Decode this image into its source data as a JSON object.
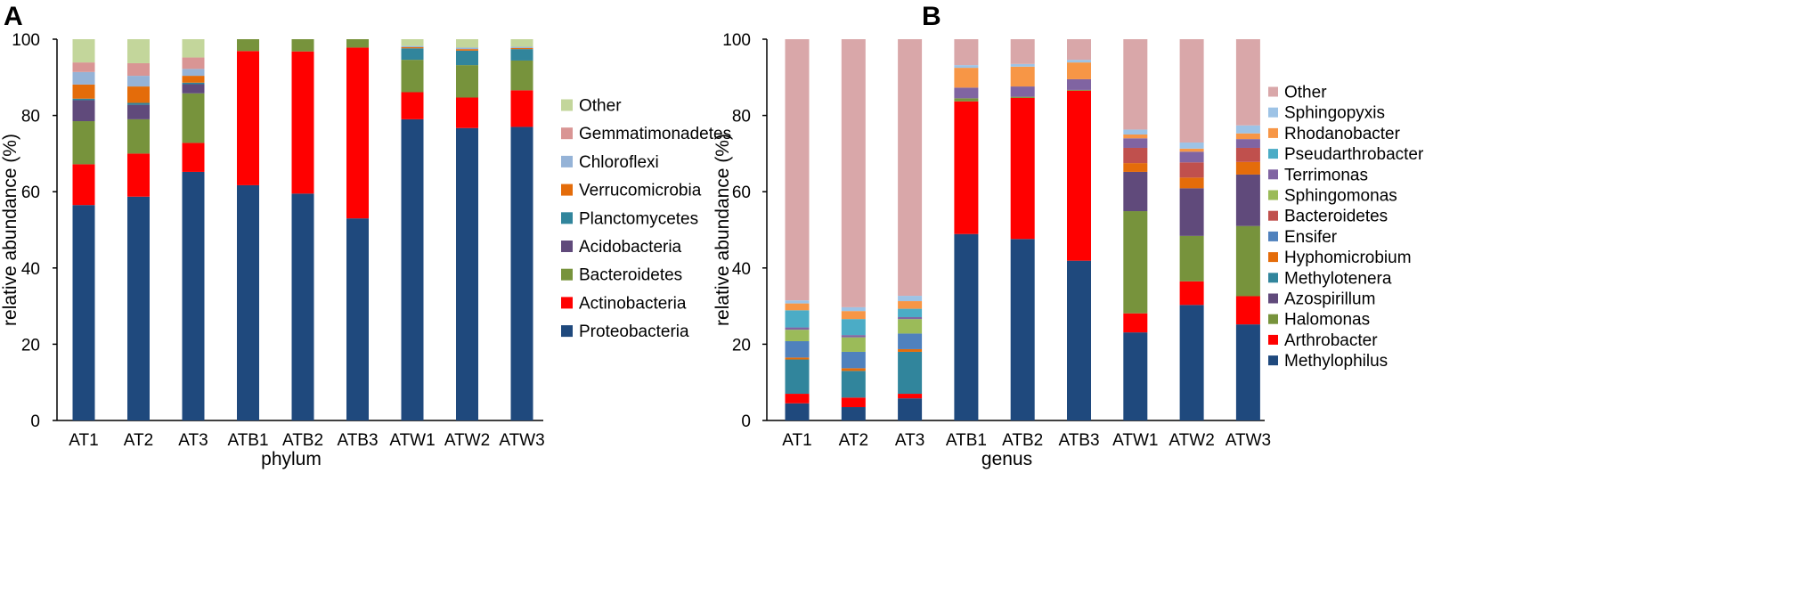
{
  "chart_data": [
    {
      "panel": "A",
      "type": "bar",
      "stacked": true,
      "xlabel": "phylum",
      "ylabel": "relative abundance (%)",
      "ylim": [
        0,
        100
      ],
      "yticks": [
        0,
        20,
        40,
        60,
        80,
        100
      ],
      "legend_position": "right",
      "categories": [
        "AT1",
        "AT2",
        "AT3",
        "ATB1",
        "ATB2",
        "ATB3",
        "ATW1",
        "ATW2",
        "ATW3"
      ],
      "series": [
        {
          "name": "Proteobacteria",
          "color": "#1f497d",
          "values": [
            56.5,
            58.7,
            65.2,
            61.7,
            59.5,
            53.0,
            79.0,
            76.7,
            77.0
          ]
        },
        {
          "name": "Actinobacteria",
          "color": "#ff0000",
          "values": [
            10.7,
            11.3,
            7.6,
            35.2,
            37.3,
            44.8,
            7.1,
            8.0,
            9.6
          ]
        },
        {
          "name": "Bacteroidetes",
          "color": "#77933c",
          "values": [
            11.3,
            9.0,
            13.0,
            3.1,
            3.2,
            2.2,
            8.5,
            8.5,
            7.8
          ]
        },
        {
          "name": "Acidobacteria",
          "color": "#604a7b",
          "values": [
            5.5,
            3.8,
            2.4,
            0,
            0,
            0,
            0,
            0,
            0
          ]
        },
        {
          "name": "Planctomycetes",
          "color": "#31859c",
          "values": [
            0.4,
            0.5,
            0.4,
            0,
            0,
            0,
            3.0,
            3.8,
            3.0
          ]
        },
        {
          "name": "Verrucomicrobia",
          "color": "#e46c0a",
          "values": [
            3.7,
            4.3,
            1.8,
            0,
            0,
            0,
            0.3,
            0.4,
            0.3
          ]
        },
        {
          "name": "Chloroflexi",
          "color": "#95b3d7",
          "values": [
            3.3,
            2.8,
            1.8,
            0,
            0,
            0,
            0.3,
            0.4,
            0.3
          ]
        },
        {
          "name": "Gemmatimonadetes",
          "color": "#d99594",
          "values": [
            2.5,
            3.3,
            3.0,
            0,
            0,
            0,
            0,
            0,
            0
          ]
        },
        {
          "name": "Other",
          "color": "#c3d69b",
          "values": [
            6.1,
            6.3,
            4.8,
            0,
            0,
            0,
            1.8,
            2.2,
            2.0
          ]
        }
      ]
    },
    {
      "panel": "B",
      "type": "bar",
      "stacked": true,
      "xlabel": "genus",
      "ylabel": "relative abundance (%)",
      "ylim": [
        0,
        100
      ],
      "yticks": [
        0,
        20,
        40,
        60,
        80,
        100
      ],
      "legend_position": "right",
      "categories": [
        "AT1",
        "AT2",
        "AT3",
        "ATB1",
        "ATB2",
        "ATB3",
        "ATW1",
        "ATW2",
        "ATW3"
      ],
      "series": [
        {
          "name": "Methylophilus",
          "color": "#1f497d",
          "values": [
            4.5,
            3.5,
            5.8,
            48.9,
            47.6,
            41.9,
            23.1,
            30.3,
            25.2
          ]
        },
        {
          "name": "Arthrobacter",
          "color": "#ff0000",
          "values": [
            2.5,
            2.5,
            1.2,
            34.8,
            37.0,
            44.6,
            5.0,
            6.2,
            7.4
          ]
        },
        {
          "name": "Halomonas",
          "color": "#77933c",
          "values": [
            0,
            0,
            0,
            0.8,
            0.3,
            0.2,
            26.8,
            11.9,
            18.4
          ]
        },
        {
          "name": "Azospirillum",
          "color": "#604a7b",
          "values": [
            0,
            0,
            0,
            0,
            0,
            0,
            10.3,
            12.5,
            13.5
          ]
        },
        {
          "name": "Methylotenera",
          "color": "#31859c",
          "values": [
            9.0,
            7.0,
            11.0,
            0,
            0,
            0,
            0,
            0,
            0
          ]
        },
        {
          "name": "Hyphomicrobium",
          "color": "#e46c0a",
          "values": [
            0.5,
            0.7,
            0.7,
            0,
            0,
            0,
            2.3,
            2.8,
            3.3
          ]
        },
        {
          "name": "Ensifer",
          "color": "#4f81bd",
          "values": [
            4.3,
            4.3,
            4.1,
            0,
            0,
            0,
            0,
            0,
            0
          ]
        },
        {
          "name": "Bacteroidetes",
          "color": "#c0504d",
          "values": [
            0,
            0,
            0,
            0,
            0,
            0,
            4.0,
            4.0,
            3.7
          ]
        },
        {
          "name": "Sphingomonas",
          "color": "#9bbb59",
          "values": [
            3.0,
            3.8,
            3.8,
            0,
            0,
            0,
            0,
            0,
            0
          ]
        },
        {
          "name": "Terrimonas",
          "color": "#8064a2",
          "values": [
            0.6,
            0.6,
            0.5,
            2.8,
            2.7,
            2.8,
            2.5,
            2.8,
            2.3
          ]
        },
        {
          "name": "Pseudarthrobacter",
          "color": "#4bacc6",
          "values": [
            4.5,
            4.2,
            2.2,
            0,
            0,
            0,
            0,
            0,
            0
          ]
        },
        {
          "name": "Rhodanobacter",
          "color": "#f79646",
          "values": [
            1.8,
            2.1,
            2.0,
            5.2,
            5.2,
            4.4,
            1.0,
            0.8,
            1.5
          ]
        },
        {
          "name": "Sphingopyxis",
          "color": "#9dc3e6",
          "values": [
            0.8,
            1.0,
            1.4,
            0.7,
            0.7,
            0.7,
            1.3,
            1.6,
            2.1
          ]
        },
        {
          "name": "Other",
          "color": "#d9a7a9",
          "values": [
            68.5,
            70.3,
            67.3,
            6.8,
            6.5,
            5.4,
            23.7,
            27.1,
            22.6
          ]
        }
      ]
    }
  ]
}
